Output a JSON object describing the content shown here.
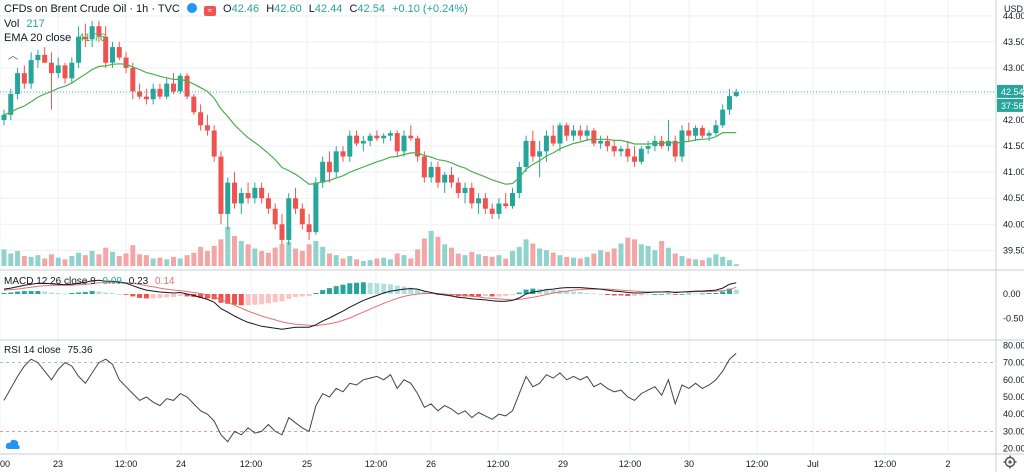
{
  "header": {
    "symbol": "CFDs on Brent Crude Oil · 1h · TVC",
    "ohlc": {
      "open_label": "O",
      "open": "42.46",
      "high_label": "H",
      "high": "42.60",
      "low_label": "L",
      "low": "42.44",
      "close_label": "C",
      "close": "42.54",
      "change": "+0.10 (+0.24%)"
    },
    "vol_label": "Vol",
    "vol_value": "217",
    "ema_label": "EMA 20 close",
    "ema_value": "41.76",
    "macd_label": "MACD 12 26 close 9",
    "macd_v1": "0.09",
    "macd_v2": "0.23",
    "macd_v3": "0.14",
    "rsi_label": "RSI 14 close",
    "rsi_value": "75.36"
  },
  "axis": {
    "currency": "USD",
    "price_ticks": [
      "44.00",
      "43.50",
      "43.00",
      "42.50",
      "42.00",
      "41.50",
      "41.00",
      "40.50",
      "40.00",
      "39.50"
    ],
    "price_badge": "42.54",
    "countdown_badge": "37:56",
    "macd_ticks": [
      "0.00",
      "-0.50"
    ],
    "rsi_ticks": [
      "80.00",
      "70.00",
      "60.00",
      "50.00",
      "40.00",
      "30.00",
      "20.00"
    ],
    "time_ticks": [
      "00",
      "23",
      "12:00",
      "24",
      "12:00",
      "25",
      "12:00",
      "26",
      "12:00",
      "29",
      "12:00",
      "30",
      "12:00",
      "Jul",
      "12:00",
      "2"
    ]
  },
  "colors": {
    "up": "#26a69a",
    "down": "#ef5350",
    "up_vol": "#8fd3cc",
    "down_vol": "#f4a5a5",
    "ema": "#4caf50",
    "macd_line": "#131722",
    "signal_line": "#e0736f",
    "hist_up": "#26a69a",
    "hist_up_light": "#b2dfdb",
    "hist_down": "#ef5350",
    "hist_down_light": "#fbc3c3",
    "rsi": "#454545",
    "grid": "#eef0f3",
    "price_line": "#26a69a"
  },
  "chart_data": [
    {
      "type": "candlestick",
      "title": "CFDs on Brent Crude Oil · 1h · TVC",
      "ylim": [
        39.2,
        44.15
      ],
      "ohlc": [
        [
          42.0,
          42.2,
          41.9,
          42.1
        ],
        [
          42.1,
          42.6,
          42.0,
          42.5
        ],
        [
          42.5,
          43.0,
          42.4,
          42.9
        ],
        [
          42.9,
          43.05,
          42.6,
          42.7
        ],
        [
          42.7,
          43.3,
          42.6,
          43.15
        ],
        [
          43.15,
          43.35,
          43.0,
          43.25
        ],
        [
          43.25,
          43.4,
          43.1,
          43.1
        ],
        [
          43.1,
          43.3,
          42.2,
          42.9
        ],
        [
          42.9,
          43.2,
          42.8,
          43.05
        ],
        [
          43.05,
          43.1,
          42.7,
          42.8
        ],
        [
          42.8,
          43.2,
          42.7,
          43.1
        ],
        [
          43.1,
          43.8,
          43.0,
          43.6
        ],
        [
          43.6,
          43.85,
          43.4,
          43.55
        ],
        [
          43.55,
          43.9,
          43.4,
          43.8
        ],
        [
          43.8,
          43.9,
          43.5,
          43.6
        ],
        [
          43.6,
          43.8,
          43.0,
          43.1
        ],
        [
          43.1,
          43.5,
          43.0,
          43.4
        ],
        [
          43.4,
          43.5,
          43.15,
          43.2
        ],
        [
          43.2,
          43.3,
          42.9,
          43.0
        ],
        [
          43.0,
          43.1,
          42.4,
          42.55
        ],
        [
          42.55,
          42.7,
          42.4,
          42.45
        ],
        [
          42.45,
          42.6,
          42.3,
          42.4
        ],
        [
          42.4,
          42.7,
          42.3,
          42.6
        ],
        [
          42.6,
          42.7,
          42.4,
          42.45
        ],
        [
          42.45,
          42.8,
          42.4,
          42.7
        ],
        [
          42.7,
          42.9,
          42.5,
          42.55
        ],
        [
          42.55,
          42.9,
          42.5,
          42.85
        ],
        [
          42.85,
          42.9,
          42.4,
          42.45
        ],
        [
          42.45,
          42.5,
          42.1,
          42.15
        ],
        [
          42.15,
          42.3,
          41.8,
          41.9
        ],
        [
          41.9,
          42.1,
          41.7,
          41.8
        ],
        [
          41.8,
          41.9,
          41.2,
          41.3
        ],
        [
          41.3,
          41.4,
          40.0,
          40.2
        ],
        [
          40.2,
          40.9,
          39.9,
          40.8
        ],
        [
          40.8,
          41.0,
          40.3,
          40.4
        ],
        [
          40.4,
          40.7,
          40.2,
          40.6
        ],
        [
          40.6,
          40.8,
          40.4,
          40.5
        ],
        [
          40.5,
          40.8,
          40.4,
          40.7
        ],
        [
          40.7,
          40.8,
          40.4,
          40.5
        ],
        [
          40.5,
          40.6,
          40.2,
          40.3
        ],
        [
          40.3,
          40.4,
          39.9,
          40.0
        ],
        [
          40.0,
          40.2,
          39.6,
          39.7
        ],
        [
          39.7,
          40.6,
          39.6,
          40.5
        ],
        [
          40.5,
          40.7,
          40.2,
          40.3
        ],
        [
          40.3,
          40.4,
          39.9,
          40.0
        ],
        [
          40.0,
          40.2,
          39.7,
          39.85
        ],
        [
          39.85,
          40.9,
          39.8,
          40.8
        ],
        [
          40.8,
          41.3,
          40.7,
          41.2
        ],
        [
          41.2,
          41.4,
          40.8,
          41.0
        ],
        [
          41.0,
          41.5,
          40.9,
          41.4
        ],
        [
          41.4,
          41.5,
          41.2,
          41.3
        ],
        [
          41.3,
          41.8,
          41.2,
          41.7
        ],
        [
          41.7,
          41.8,
          41.5,
          41.55
        ],
        [
          41.55,
          41.7,
          41.4,
          41.6
        ],
        [
          41.6,
          41.75,
          41.5,
          41.7
        ],
        [
          41.7,
          41.8,
          41.6,
          41.65
        ],
        [
          41.65,
          41.75,
          41.55,
          41.7
        ],
        [
          41.7,
          41.8,
          41.6,
          41.75
        ],
        [
          41.75,
          41.8,
          41.3,
          41.4
        ],
        [
          41.4,
          41.8,
          41.3,
          41.7
        ],
        [
          41.7,
          41.9,
          41.6,
          41.65
        ],
        [
          41.65,
          41.7,
          41.2,
          41.3
        ],
        [
          41.3,
          41.4,
          40.8,
          40.9
        ],
        [
          40.9,
          41.2,
          40.8,
          41.1
        ],
        [
          41.1,
          41.2,
          40.7,
          40.8
        ],
        [
          40.8,
          41.0,
          40.6,
          40.95
        ],
        [
          40.95,
          41.1,
          40.7,
          40.8
        ],
        [
          40.8,
          40.9,
          40.5,
          40.6
        ],
        [
          40.6,
          40.8,
          40.4,
          40.7
        ],
        [
          40.7,
          40.8,
          40.3,
          40.4
        ],
        [
          40.4,
          40.6,
          40.2,
          40.5
        ],
        [
          40.5,
          40.6,
          40.2,
          40.3
        ],
        [
          40.3,
          40.4,
          40.1,
          40.2
        ],
        [
          40.2,
          40.5,
          40.1,
          40.4
        ],
        [
          40.4,
          40.6,
          40.3,
          40.35
        ],
        [
          40.35,
          40.7,
          40.3,
          40.6
        ],
        [
          40.6,
          41.2,
          40.5,
          41.1
        ],
        [
          41.1,
          41.7,
          41.0,
          41.6
        ],
        [
          41.6,
          41.8,
          41.2,
          41.3
        ],
        [
          41.3,
          41.6,
          40.9,
          41.4
        ],
        [
          41.4,
          41.8,
          41.2,
          41.7
        ],
        [
          41.7,
          41.9,
          41.5,
          41.55
        ],
        [
          41.55,
          41.95,
          41.4,
          41.9
        ],
        [
          41.9,
          41.95,
          41.6,
          41.7
        ],
        [
          41.7,
          41.9,
          41.6,
          41.8
        ],
        [
          41.8,
          41.9,
          41.6,
          41.7
        ],
        [
          41.7,
          41.9,
          41.6,
          41.8
        ],
        [
          41.8,
          41.85,
          41.5,
          41.55
        ],
        [
          41.55,
          41.7,
          41.45,
          41.6
        ],
        [
          41.6,
          41.7,
          41.4,
          41.5
        ],
        [
          41.5,
          41.6,
          41.3,
          41.4
        ],
        [
          41.4,
          41.5,
          41.3,
          41.45
        ],
        [
          41.45,
          41.6,
          41.2,
          41.3
        ],
        [
          41.3,
          41.5,
          41.1,
          41.2
        ],
        [
          41.2,
          41.5,
          41.15,
          41.45
        ],
        [
          41.45,
          41.6,
          41.35,
          41.5
        ],
        [
          41.5,
          41.7,
          41.4,
          41.6
        ],
        [
          41.6,
          41.7,
          41.45,
          41.5
        ],
        [
          41.5,
          42.0,
          41.4,
          41.6
        ],
        [
          41.6,
          41.7,
          41.2,
          41.3
        ],
        [
          41.3,
          41.9,
          41.2,
          41.8
        ],
        [
          41.8,
          41.95,
          41.6,
          41.7
        ],
        [
          41.7,
          41.9,
          41.6,
          41.85
        ],
        [
          41.85,
          41.9,
          41.65,
          41.7
        ],
        [
          41.7,
          41.8,
          41.6,
          41.75
        ],
        [
          41.75,
          42.0,
          41.7,
          41.9
        ],
        [
          41.9,
          42.3,
          41.85,
          42.2
        ],
        [
          42.2,
          42.6,
          42.1,
          42.46
        ],
        [
          42.46,
          42.6,
          42.44,
          42.54
        ]
      ]
    },
    {
      "type": "bar",
      "title": "Vol",
      "ylim": [
        0,
        6000
      ],
      "values": [
        2000,
        1500,
        1800,
        1200,
        1100,
        1300,
        900,
        1400,
        1000,
        800,
        1200,
        1600,
        1300,
        1800,
        1400,
        2200,
        1700,
        1200,
        1500,
        2500,
        1400,
        1300,
        900,
        1000,
        800,
        1100,
        900,
        1300,
        1600,
        2300,
        1800,
        2400,
        3200,
        4700,
        3600,
        3000,
        2600,
        2100,
        1800,
        1600,
        2200,
        2600,
        2900,
        2100,
        1800,
        2600,
        3000,
        2300,
        1500,
        1300,
        900,
        1200,
        800,
        600,
        700,
        900,
        1000,
        800,
        1500,
        1300,
        900,
        2000,
        3300,
        4200,
        3500,
        2600,
        2200,
        1500,
        1300,
        1700,
        1400,
        1200,
        1100,
        1300,
        900,
        1800,
        2300,
        3200,
        2700,
        2100,
        1900,
        1600,
        1300,
        1100,
        1000,
        900,
        1100,
        1500,
        1900,
        1700,
        2100,
        2700,
        3400,
        3200,
        2600,
        2400,
        1900,
        3000,
        2200,
        1500,
        1200,
        900,
        800,
        700,
        1000,
        1400,
        1100,
        700,
        217
      ]
    },
    {
      "type": "line",
      "title": "MACD 12 26 close 9",
      "ylim": [
        -0.9,
        0.45
      ],
      "macd_values": [
        0.1,
        0.12,
        0.15,
        0.18,
        0.2,
        0.22,
        0.22,
        0.21,
        0.2,
        0.19,
        0.2,
        0.22,
        0.24,
        0.27,
        0.28,
        0.26,
        0.26,
        0.24,
        0.22,
        0.17,
        0.12,
        0.08,
        0.06,
        0.04,
        0.03,
        0.02,
        0.03,
        0.0,
        -0.03,
        -0.07,
        -0.11,
        -0.17,
        -0.3,
        -0.37,
        -0.45,
        -0.52,
        -0.58,
        -0.62,
        -0.66,
        -0.68,
        -0.7,
        -0.72,
        -0.7,
        -0.68,
        -0.68,
        -0.68,
        -0.63,
        -0.55,
        -0.49,
        -0.42,
        -0.35,
        -0.27,
        -0.2,
        -0.13,
        -0.08,
        -0.03,
        0.02,
        0.06,
        0.08,
        0.1,
        0.11,
        0.1,
        0.06,
        0.03,
        0.0,
        -0.02,
        -0.04,
        -0.07,
        -0.08,
        -0.1,
        -0.11,
        -0.12,
        -0.14,
        -0.15,
        -0.15,
        -0.13,
        -0.08,
        0.0,
        0.04,
        0.06,
        0.09,
        0.1,
        0.12,
        0.13,
        0.13,
        0.13,
        0.12,
        0.11,
        0.1,
        0.08,
        0.06,
        0.05,
        0.03,
        0.02,
        0.02,
        0.03,
        0.04,
        0.04,
        0.05,
        0.03,
        0.04,
        0.05,
        0.06,
        0.06,
        0.07,
        0.08,
        0.12,
        0.2,
        0.23
      ],
      "signal_values": [
        0.08,
        0.09,
        0.1,
        0.12,
        0.14,
        0.16,
        0.17,
        0.18,
        0.18,
        0.18,
        0.18,
        0.19,
        0.2,
        0.21,
        0.23,
        0.23,
        0.24,
        0.24,
        0.23,
        0.22,
        0.2,
        0.17,
        0.15,
        0.12,
        0.1,
        0.08,
        0.07,
        0.05,
        0.03,
        0.01,
        -0.02,
        -0.06,
        -0.12,
        -0.17,
        -0.23,
        -0.29,
        -0.35,
        -0.4,
        -0.45,
        -0.49,
        -0.53,
        -0.57,
        -0.6,
        -0.62,
        -0.63,
        -0.64,
        -0.65,
        -0.63,
        -0.61,
        -0.58,
        -0.54,
        -0.49,
        -0.43,
        -0.37,
        -0.31,
        -0.25,
        -0.19,
        -0.14,
        -0.09,
        -0.05,
        -0.02,
        0.0,
        0.01,
        0.01,
        0.01,
        0.0,
        -0.01,
        -0.02,
        -0.03,
        -0.05,
        -0.06,
        -0.08,
        -0.09,
        -0.1,
        -0.11,
        -0.12,
        -0.11,
        -0.09,
        -0.07,
        -0.04,
        -0.01,
        0.02,
        0.04,
        0.06,
        0.08,
        0.09,
        0.1,
        0.1,
        0.1,
        0.1,
        0.09,
        0.08,
        0.07,
        0.06,
        0.05,
        0.04,
        0.04,
        0.04,
        0.04,
        0.04,
        0.04,
        0.04,
        0.05,
        0.05,
        0.05,
        0.06,
        0.07,
        0.09,
        0.14
      ]
    },
    {
      "type": "line",
      "title": "RSI 14 close",
      "ylim": [
        20,
        80
      ],
      "values": [
        48,
        55,
        62,
        68,
        72,
        70,
        65,
        60,
        66,
        70,
        68,
        62,
        58,
        64,
        70,
        72,
        69,
        60,
        56,
        52,
        48,
        50,
        47,
        45,
        49,
        48,
        52,
        50,
        46,
        42,
        40,
        36,
        28,
        24,
        30,
        28,
        32,
        29,
        30,
        34,
        30,
        28,
        38,
        35,
        32,
        30,
        45,
        52,
        50,
        55,
        53,
        58,
        57,
        60,
        61,
        62,
        60,
        63,
        55,
        60,
        58,
        52,
        44,
        46,
        42,
        45,
        43,
        40,
        42,
        38,
        41,
        39,
        37,
        40,
        39,
        42,
        52,
        62,
        56,
        58,
        63,
        61,
        64,
        60,
        62,
        60,
        62,
        56,
        58,
        55,
        53,
        54,
        50,
        48,
        52,
        54,
        56,
        51,
        60,
        46,
        57,
        55,
        58,
        55,
        57,
        60,
        65,
        72,
        75.36
      ]
    },
    {
      "type": "line",
      "title": "EMA 20 close",
      "values": [
        42.1,
        42.15,
        42.22,
        42.27,
        42.35,
        42.44,
        42.5,
        42.55,
        42.61,
        42.65,
        42.71,
        42.8,
        42.88,
        42.97,
        43.03,
        43.04,
        43.07,
        43.08,
        43.07,
        43.02,
        42.97,
        42.91,
        42.88,
        42.84,
        42.81,
        42.78,
        42.78,
        42.75,
        42.69,
        42.62,
        42.55,
        42.42,
        42.21,
        42.07,
        41.91,
        41.78,
        41.66,
        41.57,
        41.47,
        41.36,
        41.24,
        41.09,
        41.03,
        40.96,
        40.87,
        40.77,
        40.78,
        40.82,
        40.84,
        40.89,
        40.93,
        41.0,
        41.05,
        41.1,
        41.15,
        41.2,
        41.24,
        41.29,
        41.3,
        41.34,
        41.37,
        41.37,
        41.32,
        41.29,
        41.24,
        41.22,
        41.18,
        41.12,
        41.08,
        41.01,
        40.96,
        40.91,
        40.85,
        40.81,
        40.77,
        40.78,
        40.9,
        41.06,
        41.15,
        41.22,
        41.31,
        41.37,
        41.45,
        41.5,
        41.55,
        41.58,
        41.62,
        41.63,
        41.63,
        41.63,
        41.61,
        41.61,
        41.58,
        41.54,
        41.54,
        41.54,
        41.55,
        41.55,
        41.58,
        41.55,
        41.58,
        41.59,
        41.62,
        41.63,
        41.64,
        41.68,
        41.76,
        41.76,
        41.76
      ]
    }
  ]
}
